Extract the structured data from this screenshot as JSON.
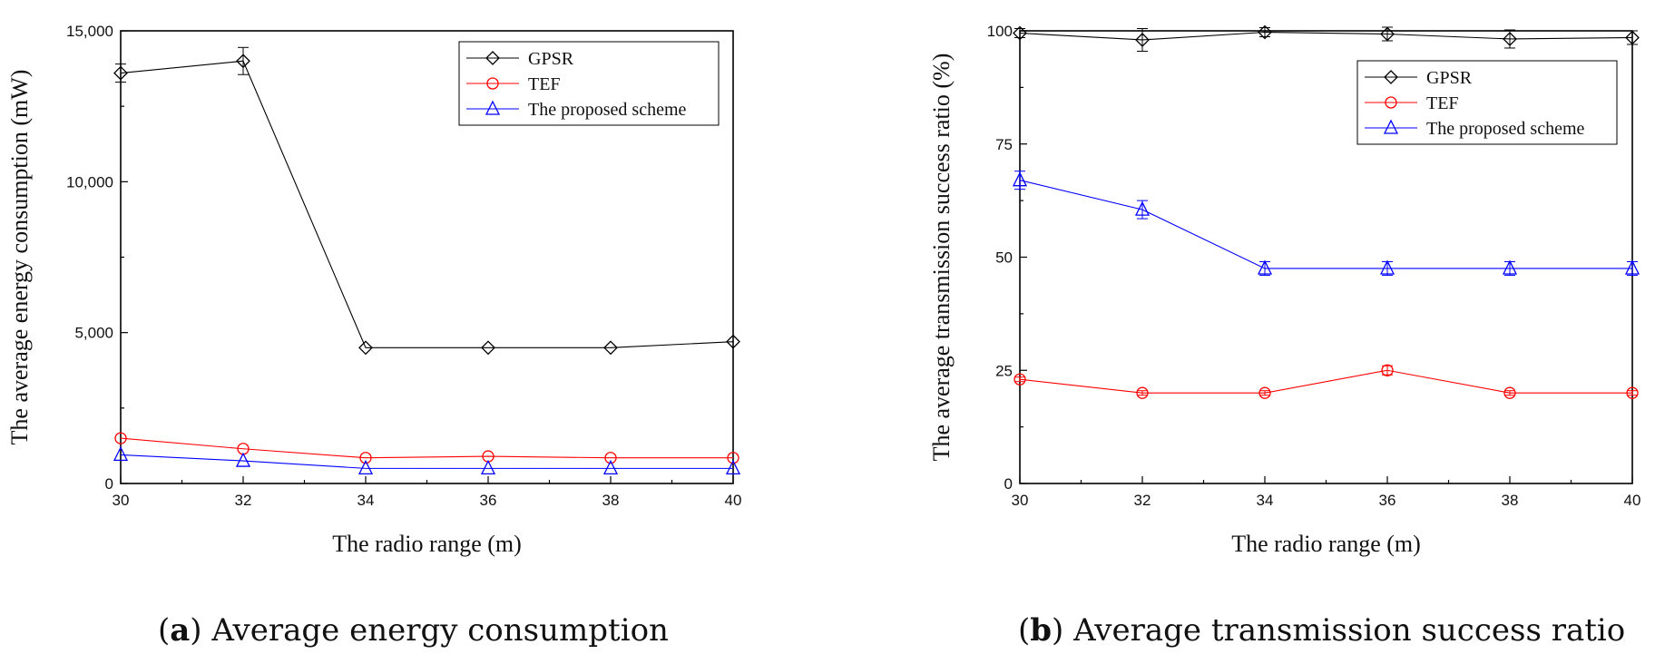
{
  "chart_data": [
    {
      "type": "line",
      "caption_letter": "a",
      "caption_text": "Average energy consumption",
      "xlabel": "The radio range (m)",
      "ylabel": "The average energy consumption (mW)",
      "x": [
        30,
        32,
        34,
        36,
        38,
        40
      ],
      "xlim": [
        30,
        40
      ],
      "ylim": [
        0,
        15000
      ],
      "xticks": [
        30,
        32,
        34,
        36,
        38,
        40
      ],
      "yticks": [
        0,
        5000,
        10000,
        15000
      ],
      "ytick_labels": [
        "0",
        "5,000",
        "10,000",
        "15,000"
      ],
      "legend_position": "top-right",
      "series": [
        {
          "name": "GPSR",
          "color": "#000000",
          "marker": "diamond",
          "values": [
            13600,
            14000,
            4500,
            4500,
            4500,
            4700
          ],
          "errors": [
            300,
            450,
            0,
            0,
            0,
            0
          ]
        },
        {
          "name": "TEF",
          "color": "#ff0000",
          "marker": "circle",
          "values": [
            1500,
            1150,
            850,
            900,
            850,
            850
          ],
          "errors": [
            0,
            0,
            0,
            0,
            0,
            0
          ]
        },
        {
          "name": "The proposed scheme",
          "color": "#0000ff",
          "marker": "triangle",
          "values": [
            950,
            750,
            500,
            500,
            500,
            500
          ],
          "errors": [
            0,
            0,
            0,
            0,
            0,
            0
          ]
        }
      ]
    },
    {
      "type": "line",
      "caption_letter": "b",
      "caption_text": "Average transmission success ratio",
      "xlabel": "The radio range (m)",
      "ylabel": "The average transmission success ratio (%)",
      "x": [
        30,
        32,
        34,
        36,
        38,
        40
      ],
      "xlim": [
        30,
        40
      ],
      "ylim": [
        0,
        100
      ],
      "xticks": [
        30,
        32,
        34,
        36,
        38,
        40
      ],
      "yticks": [
        0,
        25,
        50,
        75,
        100
      ],
      "ytick_labels": [
        "0",
        "25",
        "50",
        "75",
        "100"
      ],
      "legend_position": "top-right",
      "series": [
        {
          "name": "GPSR",
          "color": "#000000",
          "marker": "diamond",
          "values": [
            99.5,
            98,
            99.7,
            99.3,
            98.2,
            98.5
          ],
          "errors": [
            1,
            2.5,
            1,
            1.5,
            2,
            1.5
          ]
        },
        {
          "name": "TEF",
          "color": "#ff0000",
          "marker": "circle",
          "values": [
            23,
            20,
            20,
            25,
            20,
            20
          ],
          "errors": [
            0.5,
            0.5,
            0.5,
            1,
            0.5,
            0.5
          ]
        },
        {
          "name": "The proposed scheme",
          "color": "#0000ff",
          "marker": "triangle",
          "values": [
            67,
            60.5,
            47.5,
            47.5,
            47.5,
            47.5
          ],
          "errors": [
            2,
            2,
            1.5,
            1.5,
            1.5,
            1.5
          ]
        }
      ]
    }
  ]
}
